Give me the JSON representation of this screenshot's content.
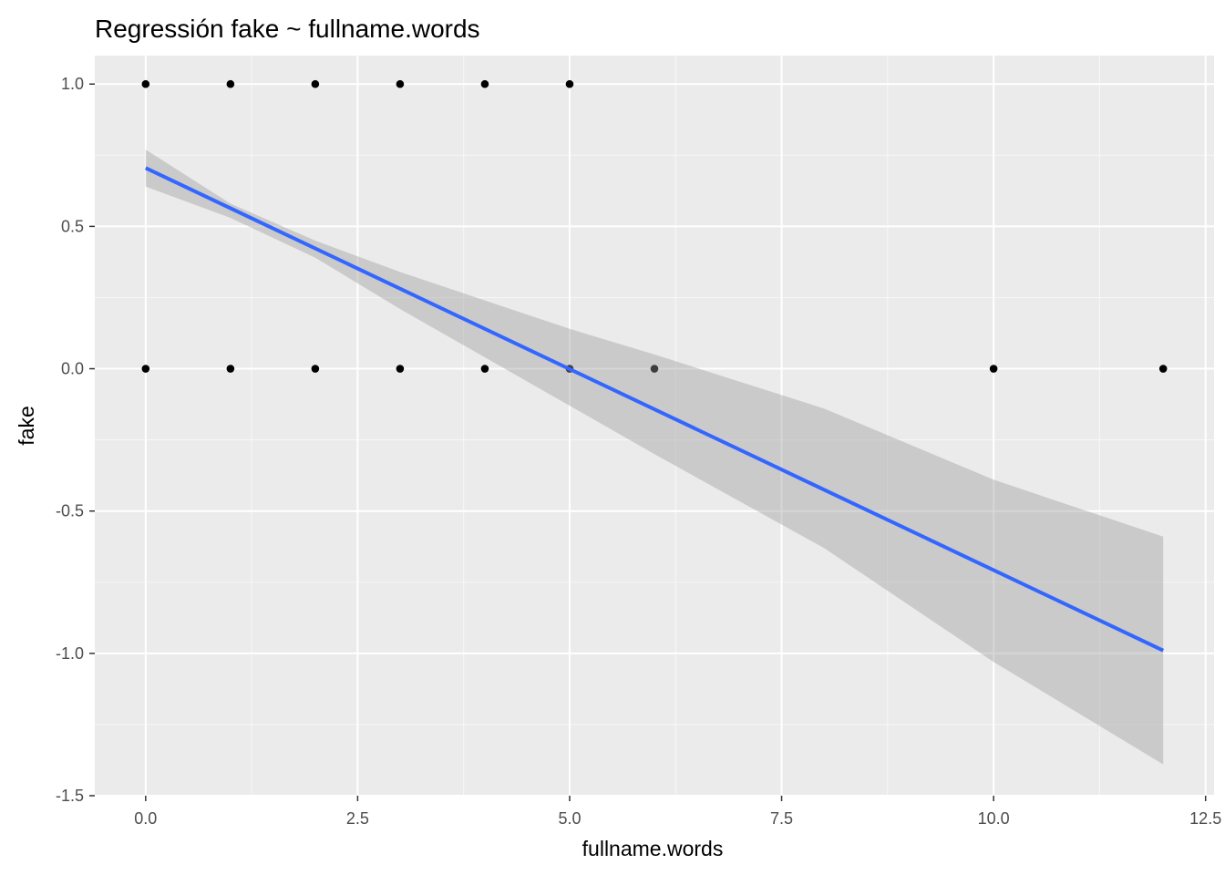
{
  "chart_data": {
    "type": "scatter",
    "title": "Regressión fake ~ fullname.words",
    "xlabel": "fullname.words",
    "ylabel": "fake",
    "xlim": [
      -0.6,
      12.6
    ],
    "ylim": [
      -1.5,
      1.1
    ],
    "x_ticks": [
      0.0,
      2.5,
      5.0,
      7.5,
      10.0,
      12.5
    ],
    "x_tick_labels": [
      "0.0",
      "2.5",
      "5.0",
      "7.5",
      "10.0",
      "12.5"
    ],
    "y_ticks": [
      -1.5,
      -1.0,
      -0.5,
      0.0,
      0.5,
      1.0
    ],
    "y_tick_labels": [
      "-1.5",
      "-1.0",
      "-0.5",
      "0.0",
      "0.5",
      "1.0"
    ],
    "grid": true,
    "legend": "none",
    "points": [
      {
        "x": 0,
        "y": 1
      },
      {
        "x": 1,
        "y": 1
      },
      {
        "x": 2,
        "y": 1
      },
      {
        "x": 3,
        "y": 1
      },
      {
        "x": 4,
        "y": 1
      },
      {
        "x": 5,
        "y": 1
      },
      {
        "x": 0,
        "y": 0
      },
      {
        "x": 1,
        "y": 0
      },
      {
        "x": 2,
        "y": 0
      },
      {
        "x": 3,
        "y": 0
      },
      {
        "x": 4,
        "y": 0
      },
      {
        "x": 5,
        "y": 0
      },
      {
        "x": 6,
        "y": 0
      },
      {
        "x": 10,
        "y": 0
      },
      {
        "x": 12,
        "y": 0
      }
    ],
    "regression": {
      "method": "lm",
      "line": [
        {
          "x": 0,
          "y": 0.705
        },
        {
          "x": 12,
          "y": -0.99
        }
      ],
      "ci_band": [
        {
          "x": 0,
          "lower": 0.64,
          "upper": 0.77
        },
        {
          "x": 1,
          "lower": 0.53,
          "upper": 0.58
        },
        {
          "x": 2,
          "lower": 0.39,
          "upper": 0.45
        },
        {
          "x": 3,
          "lower": 0.21,
          "upper": 0.34
        },
        {
          "x": 4,
          "lower": 0.04,
          "upper": 0.24
        },
        {
          "x": 5,
          "lower": -0.13,
          "upper": 0.14
        },
        {
          "x": 6,
          "lower": -0.3,
          "upper": 0.05
        },
        {
          "x": 8,
          "lower": -0.63,
          "upper": -0.14
        },
        {
          "x": 10,
          "lower": -1.03,
          "upper": -0.39
        },
        {
          "x": 12,
          "lower": -1.39,
          "upper": -0.59
        }
      ]
    },
    "colors": {
      "panel_background": "#EBEBEB",
      "grid_major": "#FFFFFF",
      "points": "#000000",
      "line": "#3366FF",
      "ci_band": "#999999",
      "tick_text": "#4D4D4D",
      "tick_mark": "#333333"
    }
  }
}
